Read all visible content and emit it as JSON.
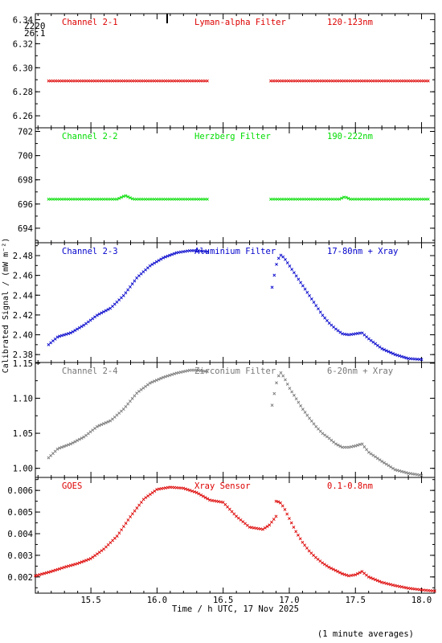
{
  "chart_data": {
    "type": "scatter",
    "corner_labels": [
      "Z220",
      "26.1"
    ],
    "xlabel": "Time / h UTC, 17 Nov 2025",
    "ylabel": "Calibrated Signal / (mW m⁻²)",
    "footnote": "(1 minute averages)",
    "xlim": [
      15.08,
      18.1
    ],
    "xticks": [
      15.5,
      16.0,
      16.5,
      17.0,
      17.5,
      18.0
    ],
    "xtick_labels": [
      "15.5",
      "16.0",
      "16.5",
      "17.0",
      "17.5",
      "18.0"
    ],
    "panels": [
      {
        "name": "Channel 2-1",
        "filter": "Lyman-alpha Filter",
        "band": "120-123nm",
        "color": "#dd0000",
        "ylim": [
          6.25,
          6.345
        ],
        "yticks": [
          6.26,
          6.28,
          6.3,
          6.32,
          6.34
        ],
        "ytick_labels": [
          "6.26",
          "6.28",
          "6.30",
          "6.32",
          "6.34"
        ],
        "series": [
          {
            "x": [
              15.18,
              15.5,
              16.0,
              16.38
            ],
            "y": [
              6.289,
              6.289,
              6.289,
              6.289
            ]
          },
          {
            "x": [
              16.86,
              17.2,
              17.6,
              18.05
            ],
            "y": [
              6.289,
              6.289,
              6.289,
              6.289
            ]
          }
        ]
      },
      {
        "name": "Channel 2-2",
        "filter": "Herzberg Filter",
        "band": "190-222nm",
        "color": "#00dd00",
        "ylim": [
          692.8,
          702.3
        ],
        "yticks": [
          694,
          696,
          698,
          700,
          702
        ],
        "ytick_labels": [
          "694",
          "696",
          "698",
          "700",
          "702"
        ],
        "series": [
          {
            "x": [
              15.18,
              15.7,
              15.76,
              15.82,
              16.38
            ],
            "y": [
              696.4,
              696.4,
              696.7,
              696.4,
              696.4
            ]
          },
          {
            "x": [
              16.86,
              17.38,
              17.42,
              17.46,
              18.05
            ],
            "y": [
              696.4,
              696.4,
              696.6,
              696.4,
              696.4
            ]
          }
        ]
      },
      {
        "name": "Channel 2-3",
        "filter": "Aluminium Filter",
        "band": "17-80nm + Xray",
        "color": "#0000cc",
        "ylim": [
          2.372,
          2.493
        ],
        "yticks": [
          2.38,
          2.4,
          2.42,
          2.44,
          2.46,
          2.48
        ],
        "ytick_labels": [
          "2.38",
          "2.40",
          "2.42",
          "2.44",
          "2.46",
          "2.48"
        ],
        "series": [
          {
            "x": [
              15.18,
              15.25,
              15.35,
              15.45,
              15.55,
              15.65,
              15.75,
              15.85,
              15.95,
              16.05,
              16.15,
              16.25,
              16.3,
              16.38
            ],
            "y": [
              2.39,
              2.398,
              2.402,
              2.41,
              2.42,
              2.427,
              2.44,
              2.458,
              2.47,
              2.478,
              2.483,
              2.485,
              2.485,
              2.484
            ]
          },
          {
            "x": [
              16.87,
              16.9,
              16.93,
              16.96,
              17.0,
              17.05,
              17.1,
              17.15,
              17.2,
              17.25,
              17.3,
              17.35,
              17.4,
              17.45,
              17.5,
              17.55,
              17.6,
              17.7,
              17.8,
              17.9,
              18.0
            ],
            "y": [
              2.448,
              2.47,
              2.481,
              2.478,
              2.47,
              2.46,
              2.45,
              2.44,
              2.43,
              2.42,
              2.412,
              2.406,
              2.401,
              2.4,
              2.401,
              2.402,
              2.396,
              2.386,
              2.38,
              2.376,
              2.375
            ]
          }
        ]
      },
      {
        "name": "Channel 2-4",
        "filter": "Zirconium Filter",
        "band": "6-20nm + Xray",
        "color": "#777777",
        "ylim": [
          0.987,
          1.151
        ],
        "yticks": [
          1.0,
          1.05,
          1.1,
          1.15
        ],
        "ytick_labels": [
          "1.00",
          "1.05",
          "1.10",
          "1.15"
        ],
        "series": [
          {
            "x": [
              15.18,
              15.25,
              15.35,
              15.45,
              15.55,
              15.65,
              15.75,
              15.85,
              15.95,
              16.05,
              16.15,
              16.25,
              16.3,
              16.38
            ],
            "y": [
              1.015,
              1.028,
              1.035,
              1.045,
              1.06,
              1.068,
              1.085,
              1.108,
              1.122,
              1.13,
              1.136,
              1.14,
              1.14,
              1.138
            ]
          },
          {
            "x": [
              16.87,
              16.9,
              16.93,
              16.96,
              17.0,
              17.05,
              17.1,
              17.15,
              17.2,
              17.25,
              17.3,
              17.35,
              17.4,
              17.45,
              17.5,
              17.55,
              17.6,
              17.7,
              17.8,
              17.9,
              18.0
            ],
            "y": [
              1.09,
              1.12,
              1.138,
              1.13,
              1.115,
              1.1,
              1.085,
              1.072,
              1.06,
              1.05,
              1.043,
              1.035,
              1.03,
              1.03,
              1.032,
              1.035,
              1.023,
              1.01,
              0.998,
              0.993,
              0.99
            ]
          }
        ]
      },
      {
        "name": "GOES",
        "filter": "Xray Sensor",
        "band": "0.1-0.8nm",
        "color": "#dd0000",
        "ylim": [
          0.00125,
          0.0066
        ],
        "yticks": [
          0.002,
          0.003,
          0.004,
          0.005,
          0.006
        ],
        "ytick_labels": [
          "0.002",
          "0.003",
          "0.004",
          "0.005",
          "0.006"
        ],
        "series": [
          {
            "x": [
              15.08,
              15.2,
              15.3,
              15.4,
              15.5,
              15.6,
              15.7,
              15.8,
              15.9,
              16.0,
              16.1,
              16.2,
              16.3,
              16.4,
              16.5,
              16.6,
              16.7,
              16.8,
              16.85,
              16.9
            ],
            "y": [
              0.00205,
              0.00225,
              0.00245,
              0.00262,
              0.00285,
              0.0033,
              0.0039,
              0.0048,
              0.0056,
              0.00605,
              0.00615,
              0.0061,
              0.0059,
              0.00555,
              0.00545,
              0.0048,
              0.0043,
              0.0042,
              0.0044,
              0.0048
            ]
          },
          {
            "x": [
              16.9,
              16.93,
              16.96,
              17.0,
              17.05,
              17.1,
              17.15,
              17.2,
              17.25,
              17.3,
              17.35,
              17.4,
              17.45,
              17.5,
              17.55,
              17.6,
              17.7,
              17.8,
              17.9,
              18.0,
              18.1
            ],
            "y": [
              0.0055,
              0.00545,
              0.0052,
              0.0047,
              0.0041,
              0.0036,
              0.0032,
              0.0029,
              0.00265,
              0.00245,
              0.0023,
              0.00215,
              0.00205,
              0.0021,
              0.00225,
              0.002,
              0.00175,
              0.0016,
              0.00148,
              0.0014,
              0.00135
            ]
          }
        ]
      }
    ]
  }
}
